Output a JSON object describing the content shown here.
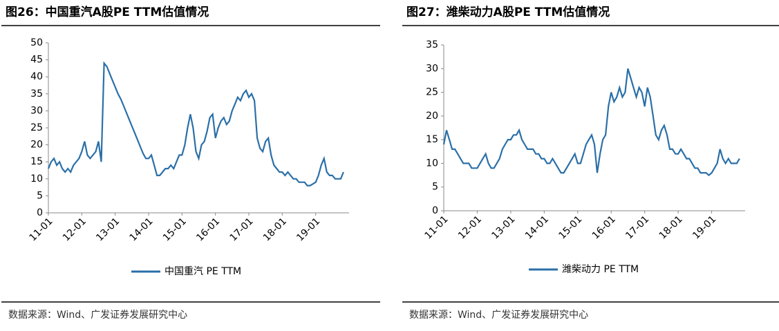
{
  "chart_data": [
    {
      "type": "line",
      "title": "图26：中国重汽A股PE TTM估值情况",
      "source": "数据来源：Wind、广发证券发展研究中心",
      "x": [
        "11-01",
        "11-02",
        "11-03",
        "11-04",
        "11-05",
        "11-06",
        "11-07",
        "11-08",
        "11-09",
        "11-10",
        "11-11",
        "11-12",
        "12-01",
        "12-02",
        "12-03",
        "12-04",
        "12-05",
        "12-06",
        "12-07",
        "12-08",
        "12-09",
        "12-10",
        "12-11",
        "12-12",
        "13-01",
        "13-02",
        "13-03",
        "13-04",
        "13-05",
        "13-06",
        "13-07",
        "13-08",
        "13-09",
        "13-10",
        "13-11",
        "13-12",
        "14-01",
        "14-02",
        "14-03",
        "14-04",
        "14-05",
        "14-06",
        "14-07",
        "14-08",
        "14-09",
        "14-10",
        "14-11",
        "14-12",
        "15-01",
        "15-02",
        "15-03",
        "15-04",
        "15-05",
        "15-06",
        "15-07",
        "15-08",
        "15-09",
        "15-10",
        "15-11",
        "15-12",
        "16-01",
        "16-02",
        "16-03",
        "16-04",
        "16-05",
        "16-06",
        "16-07",
        "16-08",
        "16-09",
        "16-10",
        "16-11",
        "16-12",
        "17-01",
        "17-02",
        "17-03",
        "17-04",
        "17-05",
        "17-06",
        "17-07",
        "17-08",
        "17-09",
        "17-10",
        "17-11",
        "17-12",
        "18-01",
        "18-02",
        "18-03",
        "18-04",
        "18-05",
        "18-06",
        "18-07",
        "18-08",
        "18-09",
        "18-10",
        "18-11",
        "18-12",
        "19-01",
        "19-02",
        "19-03",
        "19-04",
        "19-05",
        "19-06",
        "19-07",
        "19-08",
        "19-09",
        "19-10",
        "19-11"
      ],
      "series": [
        {
          "name": "中国重汽 PE TTM",
          "color": "#2a6fa8",
          "values": [
            13,
            15,
            16,
            14,
            15,
            13,
            12,
            13,
            12,
            14,
            15,
            16,
            18,
            21,
            17,
            16,
            17,
            18,
            21,
            15,
            44,
            43,
            41,
            39,
            37,
            35,
            33.5,
            31.5,
            29.5,
            27.5,
            25.5,
            23.5,
            21.5,
            19.5,
            17.5,
            16,
            16,
            17,
            14,
            11,
            11,
            12,
            13,
            13,
            14,
            13,
            15,
            17,
            17,
            20,
            25,
            29,
            25,
            18,
            16,
            20,
            21,
            24,
            28,
            29,
            22,
            25,
            27,
            28,
            26,
            27,
            30,
            32,
            34,
            33,
            35,
            36,
            34,
            35,
            33,
            22,
            19,
            18,
            21,
            22,
            17,
            14,
            13,
            12,
            12,
            11,
            12,
            11,
            10,
            10,
            9,
            9,
            9,
            8,
            8,
            8.5,
            9,
            11,
            14,
            16,
            12,
            11,
            11,
            10,
            10,
            10,
            12
          ]
        }
      ],
      "xticks": [
        "11-01",
        "12-01",
        "13-01",
        "14-01",
        "15-01",
        "16-01",
        "17-01",
        "18-01",
        "19-01"
      ],
      "ylim": [
        0,
        50
      ],
      "yticks": [
        0,
        5,
        10,
        15,
        20,
        25,
        30,
        35,
        40,
        45,
        50
      ]
    },
    {
      "type": "line",
      "title": "图27：潍柴动力A股PE TTM估值情况",
      "source": "数据来源：Wind、广发证券发展研究中心",
      "x": [
        "11-01",
        "11-02",
        "11-03",
        "11-04",
        "11-05",
        "11-06",
        "11-07",
        "11-08",
        "11-09",
        "11-10",
        "11-11",
        "11-12",
        "12-01",
        "12-02",
        "12-03",
        "12-04",
        "12-05",
        "12-06",
        "12-07",
        "12-08",
        "12-09",
        "12-10",
        "12-11",
        "12-12",
        "13-01",
        "13-02",
        "13-03",
        "13-04",
        "13-05",
        "13-06",
        "13-07",
        "13-08",
        "13-09",
        "13-10",
        "13-11",
        "13-12",
        "14-01",
        "14-02",
        "14-03",
        "14-04",
        "14-05",
        "14-06",
        "14-07",
        "14-08",
        "14-09",
        "14-10",
        "14-11",
        "14-12",
        "15-01",
        "15-02",
        "15-03",
        "15-04",
        "15-05",
        "15-06",
        "15-07",
        "15-08",
        "15-09",
        "15-10",
        "15-11",
        "15-12",
        "16-01",
        "16-02",
        "16-03",
        "16-04",
        "16-05",
        "16-06",
        "16-07",
        "16-08",
        "16-09",
        "16-10",
        "16-11",
        "16-12",
        "17-01",
        "17-02",
        "17-03",
        "17-04",
        "17-05",
        "17-06",
        "17-07",
        "17-08",
        "17-09",
        "17-10",
        "17-11",
        "17-12",
        "18-01",
        "18-02",
        "18-03",
        "18-04",
        "18-05",
        "18-06",
        "18-07",
        "18-08",
        "18-09",
        "18-10",
        "18-11",
        "18-12",
        "19-01",
        "19-02",
        "19-03",
        "19-04",
        "19-05",
        "19-06",
        "19-07",
        "19-08",
        "19-09",
        "19-10",
        "19-11"
      ],
      "series": [
        {
          "name": "潍柴动力 PE TTM",
          "color": "#2a6fa8",
          "values": [
            14,
            17,
            15,
            13,
            13,
            12,
            11,
            10,
            10,
            10,
            9,
            9,
            9,
            10,
            11,
            12,
            10,
            9,
            9,
            10,
            11,
            13,
            14,
            15,
            15,
            16,
            16,
            17,
            15,
            14,
            13,
            13,
            13,
            12,
            12,
            11,
            11,
            10,
            10,
            11,
            10,
            9,
            8,
            8,
            9,
            10,
            11,
            12,
            10,
            10,
            12,
            14,
            15,
            16,
            14,
            8,
            12,
            15,
            16,
            22,
            25,
            23,
            24,
            26,
            24,
            25,
            30,
            28,
            26,
            24,
            26,
            25,
            22,
            26,
            24,
            20,
            16,
            15,
            17,
            18,
            16,
            13,
            13,
            12,
            12,
            13,
            12,
            11,
            11,
            10,
            9,
            9,
            8,
            8,
            8,
            7.5,
            8,
            9,
            10,
            13,
            11,
            10,
            11,
            10,
            10,
            10,
            11
          ]
        }
      ],
      "xticks": [
        "11-01",
        "12-01",
        "13-01",
        "14-01",
        "15-01",
        "16-01",
        "17-01",
        "18-01",
        "19-01"
      ],
      "ylim": [
        0,
        35
      ],
      "yticks": [
        0,
        5,
        10,
        15,
        20,
        25,
        30,
        35
      ]
    }
  ]
}
